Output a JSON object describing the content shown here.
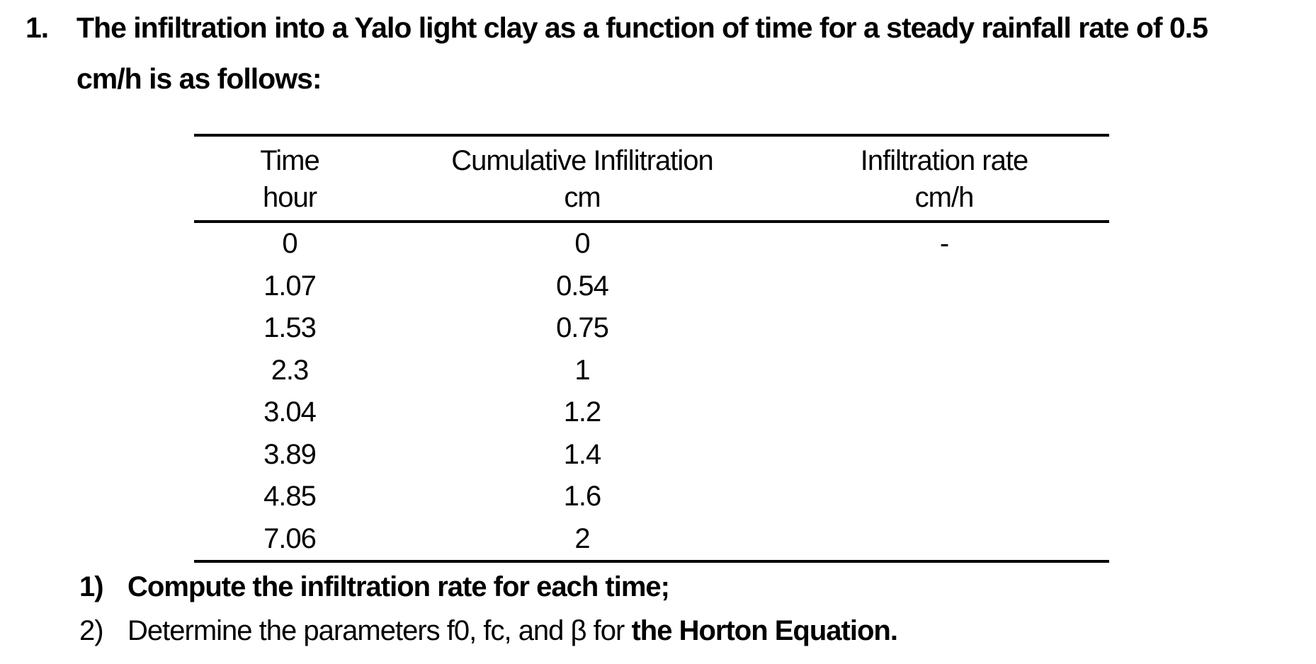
{
  "page": {
    "background": "#ffffff",
    "text_color": "#000000"
  },
  "problem": {
    "number": "1.",
    "statement_line1": "The infiltration into a Yalo light clay as a function of time for a steady rainfall rate of 0.5",
    "statement_line2": "cm/h is as follows:"
  },
  "table": {
    "columns": [
      {
        "label": "Time",
        "unit": "hour"
      },
      {
        "label": "Cumulative Infilitration",
        "unit": "cm"
      },
      {
        "label": "Infiltration rate",
        "unit": "cm/h"
      }
    ],
    "rows": [
      {
        "time": "0",
        "cumulative": "0",
        "rate": "-"
      },
      {
        "time": "1.07",
        "cumulative": "0.54",
        "rate": ""
      },
      {
        "time": "1.53",
        "cumulative": "0.75",
        "rate": ""
      },
      {
        "time": "2.3",
        "cumulative": "1",
        "rate": ""
      },
      {
        "time": "3.04",
        "cumulative": "1.2",
        "rate": ""
      },
      {
        "time": "3.89",
        "cumulative": "1.4",
        "rate": ""
      },
      {
        "time": "4.85",
        "cumulative": "1.6",
        "rate": ""
      },
      {
        "time": "7.06",
        "cumulative": "2",
        "rate": ""
      }
    ]
  },
  "questions": [
    {
      "number": "1)",
      "text": "Compute the infiltration rate for each time;"
    },
    {
      "number": "2)",
      "text_regular": "Determine the parameters f0, fc, and β for ",
      "text_bold": "the Horton Equation."
    }
  ],
  "chart_data": {
    "type": "table",
    "title": "Infiltration into a Yalo light clay (steady rainfall rate 0.5 cm/h)",
    "categories": [
      "Time (hour)",
      "Cumulative Infilitration (cm)",
      "Infiltration rate (cm/h)"
    ],
    "series": [
      {
        "name": "Time (hour)",
        "values": [
          0,
          1.07,
          1.53,
          2.3,
          3.04,
          3.89,
          4.85,
          7.06
        ]
      },
      {
        "name": "Cumulative Infilitration (cm)",
        "values": [
          0,
          0.54,
          0.75,
          1,
          1.2,
          1.4,
          1.6,
          2
        ]
      },
      {
        "name": "Infiltration rate (cm/h)",
        "values": [
          "-",
          null,
          null,
          null,
          null,
          null,
          null,
          null
        ]
      }
    ]
  }
}
